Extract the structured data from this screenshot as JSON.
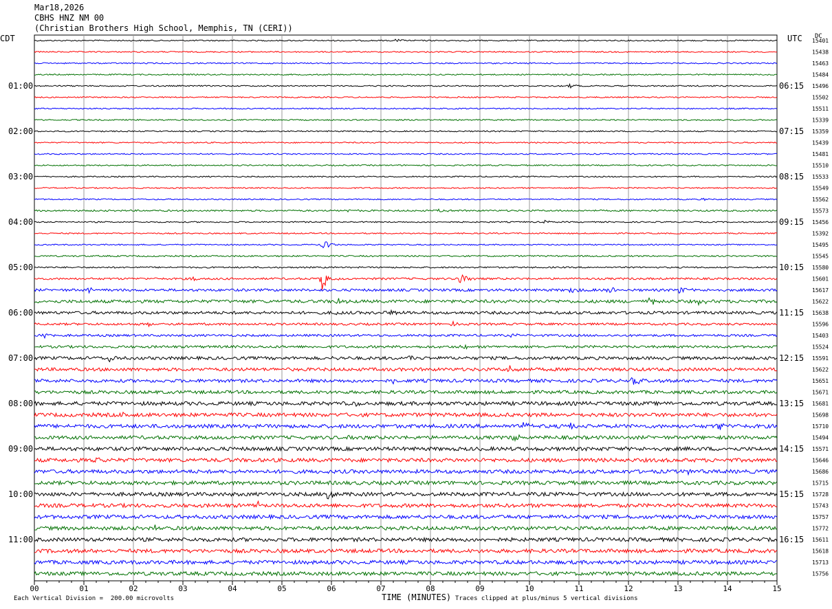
{
  "header": {
    "date": "Mar18,2026",
    "station": "CBHS HNZ NM 00",
    "location": "(Christian Brothers High School, Memphis, TN (CERI))"
  },
  "left_axis_label": "CDT",
  "right_axis_label": "UTC",
  "dc_header": "DC",
  "footer": {
    "scale_note": "Each Vertical Division =  200.00 microvolts",
    "xlabel": "TIME (MINUTES)",
    "clip_note": "Traces clipped at plus/minus 5 vertical divisions"
  },
  "colors": {
    "cycle": [
      "#000000",
      "#ff0000",
      "#0000ff",
      "#007000"
    ]
  },
  "chart_data": {
    "type": "line",
    "title": "CBHS HNZ NM 00",
    "xlabel": "TIME (MINUTES)",
    "xlim": [
      0,
      15
    ],
    "x_ticks": [
      "00",
      "01",
      "02",
      "03",
      "04",
      "05",
      "06",
      "07",
      "08",
      "09",
      "10",
      "11",
      "12",
      "13",
      "14",
      "15"
    ],
    "left_time_labels": [
      "01:00",
      "02:00",
      "03:00",
      "04:00",
      "05:00",
      "06:00",
      "07:00",
      "08:00",
      "09:00",
      "10:00",
      "11:00"
    ],
    "right_time_labels": [
      "06:15",
      "07:15",
      "08:15",
      "09:15",
      "10:15",
      "11:15",
      "12:15",
      "13:15",
      "14:15",
      "15:15",
      "16:15"
    ],
    "dc_values": [
      "15401",
      "15438",
      "15463",
      "15484",
      "15496",
      "15502",
      "15511",
      "15339",
      "15359",
      "15439",
      "15481",
      "15510",
      "15533",
      "15549",
      "15562",
      "15573",
      "15456",
      "15392",
      "15495",
      "15545",
      "15580",
      "15601",
      "15617",
      "15622",
      "15638",
      "15596",
      "15403",
      "15524",
      "15591",
      "15622",
      "15651",
      "15671",
      "15681",
      "15698",
      "15710",
      "15494",
      "15571",
      "15646",
      "15686",
      "15715",
      "15728",
      "15743",
      "15757",
      "15772",
      "15611",
      "15618",
      "15713",
      "15756"
    ],
    "noise_levels": [
      1,
      1,
      1,
      1,
      1,
      1,
      1,
      1,
      1,
      1,
      1,
      1,
      1,
      1,
      1,
      1.3,
      1,
      1,
      1,
      1.2,
      1.2,
      1.6,
      2,
      2.5,
      2.3,
      1.8,
      1.8,
      2,
      2.5,
      2.6,
      2.6,
      2.6,
      3,
      3,
      3,
      2.8,
      3,
      3,
      3,
      3,
      3,
      3,
      3,
      3,
      3,
      3,
      3,
      3
    ],
    "events": [
      {
        "trace": 0,
        "x": 7.3,
        "amp": 3
      },
      {
        "trace": 4,
        "x": 10.8,
        "amp": 3
      },
      {
        "trace": 14,
        "x": 13.5,
        "amp": 2.5
      },
      {
        "trace": 15,
        "x": 6.3,
        "amp": 4
      },
      {
        "trace": 15,
        "x": 8.2,
        "amp": 3
      },
      {
        "trace": 16,
        "x": 10.3,
        "amp": 3
      },
      {
        "trace": 18,
        "x": 5.8,
        "amp": 12
      },
      {
        "trace": 21,
        "x": 5.8,
        "amp": 18
      },
      {
        "trace": 21,
        "x": 8.6,
        "amp": 15
      },
      {
        "trace": 21,
        "x": 3.2,
        "amp": 4
      },
      {
        "trace": 22,
        "x": 1.1,
        "amp": 4
      },
      {
        "trace": 22,
        "x": 10.8,
        "amp": 6
      },
      {
        "trace": 22,
        "x": 11.6,
        "amp": 7
      },
      {
        "trace": 22,
        "x": 13.0,
        "amp": 6
      },
      {
        "trace": 23,
        "x": 12.4,
        "amp": 7
      },
      {
        "trace": 23,
        "x": 13.4,
        "amp": 6
      },
      {
        "trace": 23,
        "x": 6.1,
        "amp": 5
      },
      {
        "trace": 24,
        "x": 7.1,
        "amp": 8
      },
      {
        "trace": 24,
        "x": 6.0,
        "amp": 6
      },
      {
        "trace": 25,
        "x": 8.4,
        "amp": 5
      },
      {
        "trace": 25,
        "x": 2.3,
        "amp": 4
      },
      {
        "trace": 26,
        "x": 0.2,
        "amp": 4
      },
      {
        "trace": 26,
        "x": 9.6,
        "amp": 4
      },
      {
        "trace": 27,
        "x": 8.6,
        "amp": 6
      },
      {
        "trace": 28,
        "x": 1.5,
        "amp": 5
      },
      {
        "trace": 28,
        "x": 5.9,
        "amp": 5
      },
      {
        "trace": 28,
        "x": 7.6,
        "amp": 5
      },
      {
        "trace": 29,
        "x": 9.6,
        "amp": 8
      },
      {
        "trace": 30,
        "x": 12.1,
        "amp": 7
      },
      {
        "trace": 30,
        "x": 7.2,
        "amp": 5
      },
      {
        "trace": 32,
        "x": 6.5,
        "amp": 5
      },
      {
        "trace": 33,
        "x": 1.7,
        "amp": 5
      },
      {
        "trace": 34,
        "x": 9.9,
        "amp": 8
      },
      {
        "trace": 34,
        "x": 13.8,
        "amp": 8
      },
      {
        "trace": 34,
        "x": 10.8,
        "amp": 6
      },
      {
        "trace": 35,
        "x": 6.3,
        "amp": 6
      },
      {
        "trace": 35,
        "x": 9.7,
        "amp": 6
      },
      {
        "trace": 37,
        "x": 1.2,
        "amp": 4
      },
      {
        "trace": 38,
        "x": 13.2,
        "amp": 5
      },
      {
        "trace": 40,
        "x": 5.9,
        "amp": 10
      },
      {
        "trace": 41,
        "x": 4.5,
        "amp": 6
      },
      {
        "trace": 43,
        "x": 2.4,
        "amp": 4
      }
    ]
  }
}
